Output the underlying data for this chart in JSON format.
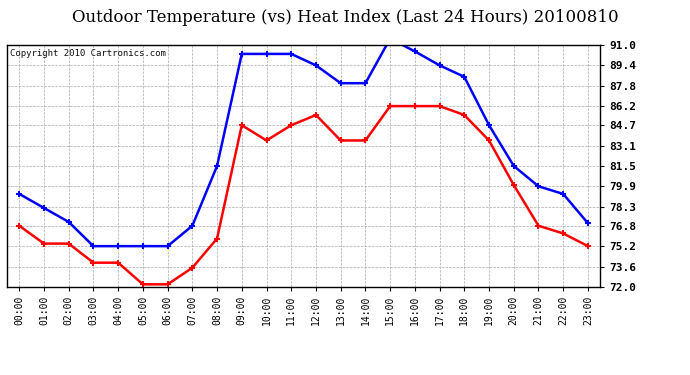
{
  "title": "Outdoor Temperature (vs) Heat Index (Last 24 Hours) 20100810",
  "copyright": "Copyright 2010 Cartronics.com",
  "hours": [
    "00:00",
    "01:00",
    "02:00",
    "03:00",
    "04:00",
    "05:00",
    "06:00",
    "07:00",
    "08:00",
    "09:00",
    "10:00",
    "11:00",
    "12:00",
    "13:00",
    "14:00",
    "15:00",
    "16:00",
    "17:00",
    "18:00",
    "19:00",
    "20:00",
    "21:00",
    "22:00",
    "23:00"
  ],
  "blue_temp": [
    79.3,
    78.2,
    77.1,
    75.2,
    75.2,
    75.2,
    75.2,
    76.8,
    81.5,
    90.3,
    90.3,
    90.3,
    89.4,
    88.0,
    88.0,
    91.5,
    90.5,
    89.4,
    88.5,
    84.7,
    81.5,
    79.9,
    79.3,
    77.0
  ],
  "red_heat": [
    76.8,
    75.4,
    75.4,
    73.9,
    73.9,
    72.2,
    72.2,
    73.5,
    75.8,
    84.7,
    83.5,
    84.7,
    85.5,
    83.5,
    83.5,
    86.2,
    86.2,
    86.2,
    85.5,
    83.5,
    80.0,
    76.8,
    76.2,
    75.2
  ],
  "ylim": [
    72.0,
    91.0
  ],
  "yticks": [
    72.0,
    73.6,
    75.2,
    76.8,
    78.3,
    79.9,
    81.5,
    83.1,
    84.7,
    86.2,
    87.8,
    89.4,
    91.0
  ],
  "blue_color": "#0000FF",
  "red_color": "#FF0000",
  "bg_color": "#FFFFFF",
  "grid_color": "#AAAAAA",
  "title_color": "#000000",
  "title_fontsize": 12,
  "copyright_fontsize": 6.5
}
